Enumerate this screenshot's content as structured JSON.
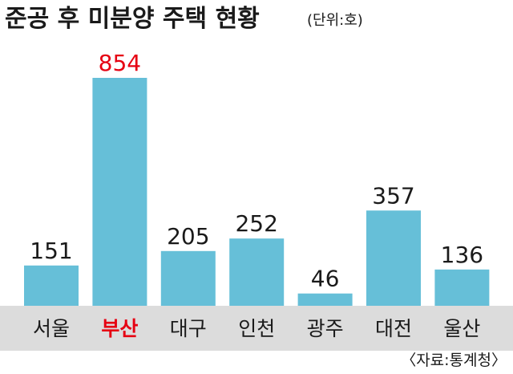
{
  "chart_data": {
    "type": "bar",
    "title": "준공 후 미분양 주택 현황",
    "unit_note": "(단위:호)",
    "categories": [
      "서울",
      "부산",
      "대구",
      "인천",
      "광주",
      "대전",
      "울산"
    ],
    "values": [
      151,
      854,
      205,
      252,
      46,
      357,
      136
    ],
    "highlight_index": 1,
    "source": "〈자료:통계청〉",
    "xlabel": "",
    "ylabel": "",
    "ylim": [
      0,
      854
    ],
    "grid": false,
    "legend": "none",
    "colors": {
      "bar": "#66bfd8",
      "baseline_band": "#dcdcdc",
      "text": "#1a1a1a",
      "highlight": "#e60012"
    }
  }
}
